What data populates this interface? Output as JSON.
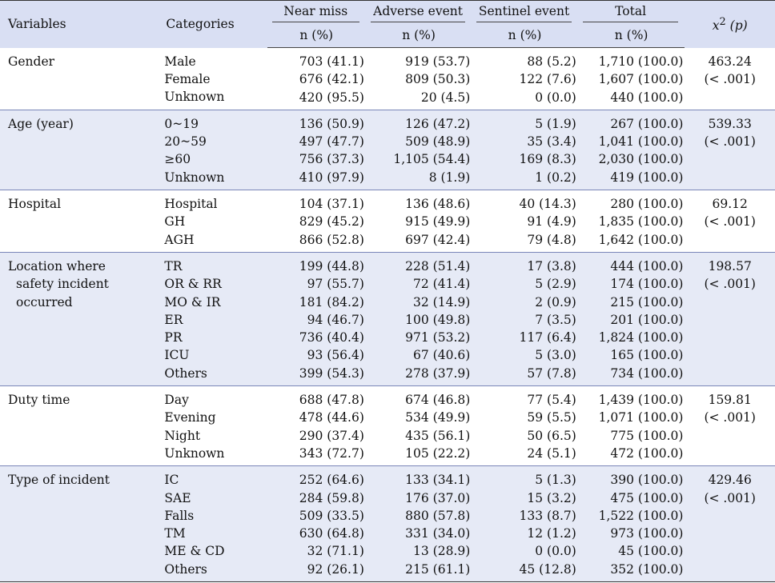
{
  "header": {
    "variables": "Variables",
    "categories": "Categories",
    "near_miss": "Near miss",
    "adverse_event": "Adverse event",
    "sentinel_event": "Sentinel event",
    "total": "Total",
    "n_pct": "n (%)",
    "chi_symbol": "x",
    "chi_sup": "2",
    "chi_p": "(p)"
  },
  "groups": [
    {
      "variable_lines": [
        "Gender"
      ],
      "chi": "463.24",
      "p": "(< .001)",
      "rows": [
        {
          "category": "Male",
          "near": "703 (41.1)",
          "adverse": "919 (53.7)",
          "sentinel": "88 (5.2)",
          "total": "1,710 (100.0)"
        },
        {
          "category": "Female",
          "near": "676 (42.1)",
          "adverse": "809 (50.3)",
          "sentinel": "122 (7.6)",
          "total": "1,607 (100.0)"
        },
        {
          "category": "Unknown",
          "near": "420 (95.5)",
          "adverse": "20 (4.5)",
          "sentinel": "0 (0.0)",
          "total": "440 (100.0)"
        }
      ]
    },
    {
      "variable_lines": [
        "Age (year)"
      ],
      "chi": "539.33",
      "p": "(< .001)",
      "rows": [
        {
          "category": "0~19",
          "near": "136 (50.9)",
          "adverse": "126 (47.2)",
          "sentinel": "5 (1.9)",
          "total": "267 (100.0)"
        },
        {
          "category": "20~59",
          "near": "497 (47.7)",
          "adverse": "509 (48.9)",
          "sentinel": "35 (3.4)",
          "total": "1,041 (100.0)"
        },
        {
          "category": "≥60",
          "near": "756 (37.3)",
          "adverse": "1,105 (54.4)",
          "sentinel": "169 (8.3)",
          "total": "2,030 (100.0)"
        },
        {
          "category": "Unknown",
          "near": "410 (97.9)",
          "adverse": "8 (1.9)",
          "sentinel": "1 (0.2)",
          "total": "419 (100.0)"
        }
      ]
    },
    {
      "variable_lines": [
        "Hospital"
      ],
      "chi": "69.12",
      "p": "(< .001)",
      "rows": [
        {
          "category": "Hospital",
          "near": "104 (37.1)",
          "adverse": "136 (48.6)",
          "sentinel": "40 (14.3)",
          "total": "280 (100.0)"
        },
        {
          "category": "GH",
          "near": "829 (45.2)",
          "adverse": "915 (49.9)",
          "sentinel": "91 (4.9)",
          "total": "1,835 (100.0)"
        },
        {
          "category": "AGH",
          "near": "866 (52.8)",
          "adverse": "697 (42.4)",
          "sentinel": "79 (4.8)",
          "total": "1,642 (100.0)"
        }
      ]
    },
    {
      "variable_lines": [
        "Location where",
        "safety incident",
        "occurred"
      ],
      "chi": "198.57",
      "p": "(< .001)",
      "rows": [
        {
          "category": "TR",
          "near": "199 (44.8)",
          "adverse": "228 (51.4)",
          "sentinel": "17 (3.8)",
          "total": "444 (100.0)"
        },
        {
          "category": "OR & RR",
          "near": "97 (55.7)",
          "adverse": "72 (41.4)",
          "sentinel": "5 (2.9)",
          "total": "174 (100.0)"
        },
        {
          "category": "MO & IR",
          "near": "181 (84.2)",
          "adverse": "32 (14.9)",
          "sentinel": "2 (0.9)",
          "total": "215 (100.0)"
        },
        {
          "category": "ER",
          "near": "94 (46.7)",
          "adverse": "100 (49.8)",
          "sentinel": "7 (3.5)",
          "total": "201 (100.0)"
        },
        {
          "category": "PR",
          "near": "736 (40.4)",
          "adverse": "971 (53.2)",
          "sentinel": "117 (6.4)",
          "total": "1,824 (100.0)"
        },
        {
          "category": "ICU",
          "near": "93 (56.4)",
          "adverse": "67 (40.6)",
          "sentinel": "5 (3.0)",
          "total": "165 (100.0)"
        },
        {
          "category": "Others",
          "near": "399 (54.3)",
          "adverse": "278 (37.9)",
          "sentinel": "57 (7.8)",
          "total": "734 (100.0)"
        }
      ]
    },
    {
      "variable_lines": [
        "Duty time"
      ],
      "chi": "159.81",
      "p": "(< .001)",
      "rows": [
        {
          "category": "Day",
          "near": "688 (47.8)",
          "adverse": "674 (46.8)",
          "sentinel": "77 (5.4)",
          "total": "1,439 (100.0)"
        },
        {
          "category": "Evening",
          "near": "478 (44.6)",
          "adverse": "534 (49.9)",
          "sentinel": "59 (5.5)",
          "total": "1,071 (100.0)"
        },
        {
          "category": "Night",
          "near": "290 (37.4)",
          "adverse": "435 (56.1)",
          "sentinel": "50 (6.5)",
          "total": "775 (100.0)"
        },
        {
          "category": "Unknown",
          "near": "343 (72.7)",
          "adverse": "105 (22.2)",
          "sentinel": "24 (5.1)",
          "total": "472 (100.0)"
        }
      ]
    },
    {
      "variable_lines": [
        "Type of incident"
      ],
      "chi": "429.46",
      "p": "(< .001)",
      "rows": [
        {
          "category": "IC",
          "near": "252 (64.6)",
          "adverse": "133 (34.1)",
          "sentinel": "5 (1.3)",
          "total": "390 (100.0)"
        },
        {
          "category": "SAE",
          "near": "284 (59.8)",
          "adverse": "176 (37.0)",
          "sentinel": "15 (3.2)",
          "total": "475 (100.0)"
        },
        {
          "category": "Falls",
          "near": "509 (33.5)",
          "adverse": "880 (57.8)",
          "sentinel": "133 (8.7)",
          "total": "1,522 (100.0)"
        },
        {
          "category": "TM",
          "near": "630 (64.8)",
          "adverse": "331 (34.0)",
          "sentinel": "12 (1.2)",
          "total": "973 (100.0)"
        },
        {
          "category": "ME & CD",
          "near": "32 (71.1)",
          "adverse": "13 (28.9)",
          "sentinel": "0 (0.0)",
          "total": "45 (100.0)"
        },
        {
          "category": "Others",
          "near": "92 (26.1)",
          "adverse": "215 (61.1)",
          "sentinel": "45 (12.8)",
          "total": "352 (100.0)"
        }
      ]
    }
  ]
}
